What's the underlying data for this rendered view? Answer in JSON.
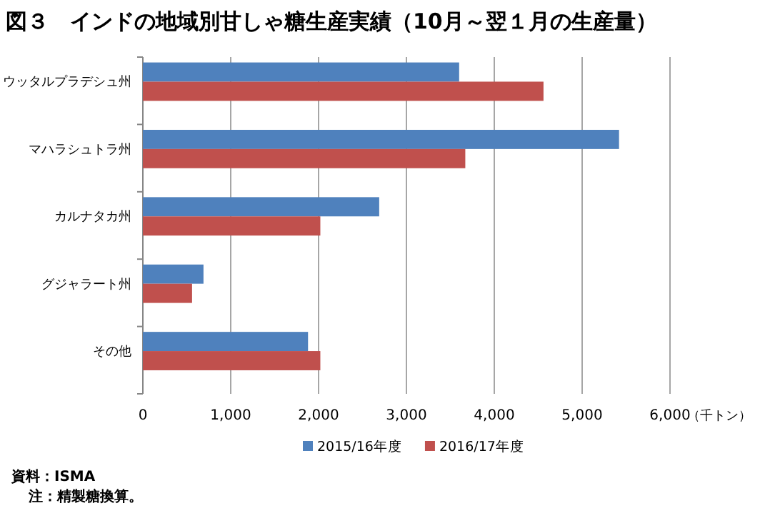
{
  "chart_data": {
    "type": "bar",
    "orientation": "horizontal",
    "title": "図３　インドの地域別甘しゃ糖生産実績（10月～翌１月の生産量）",
    "xlabel": "（千トン）",
    "categories": [
      "ウッタルプラデシュ州",
      "マハラシュトラ州",
      "カルナタカ州",
      "グジャラート州",
      "その他"
    ],
    "series": [
      {
        "name": "2015/16年度",
        "color": "#4f81bd",
        "values": [
          3600,
          5420,
          2690,
          690,
          1880
        ]
      },
      {
        "name": "2016/17年度",
        "color": "#c0504d",
        "values": [
          4560,
          3670,
          2020,
          560,
          2020
        ]
      }
    ],
    "xlim": [
      0,
      6000
    ],
    "xticks": [
      {
        "value": 0,
        "label": "0"
      },
      {
        "value": 1000,
        "label": "1,000"
      },
      {
        "value": 2000,
        "label": "2,000"
      },
      {
        "value": 3000,
        "label": "3,000"
      },
      {
        "value": 4000,
        "label": "4,000"
      },
      {
        "value": 5000,
        "label": "5,000"
      },
      {
        "value": 6000,
        "label": "6,000"
      }
    ],
    "grid": "x",
    "legend": "bottom",
    "annotations": [
      "資料：ISMA",
      "注：精製糖換算。"
    ]
  }
}
